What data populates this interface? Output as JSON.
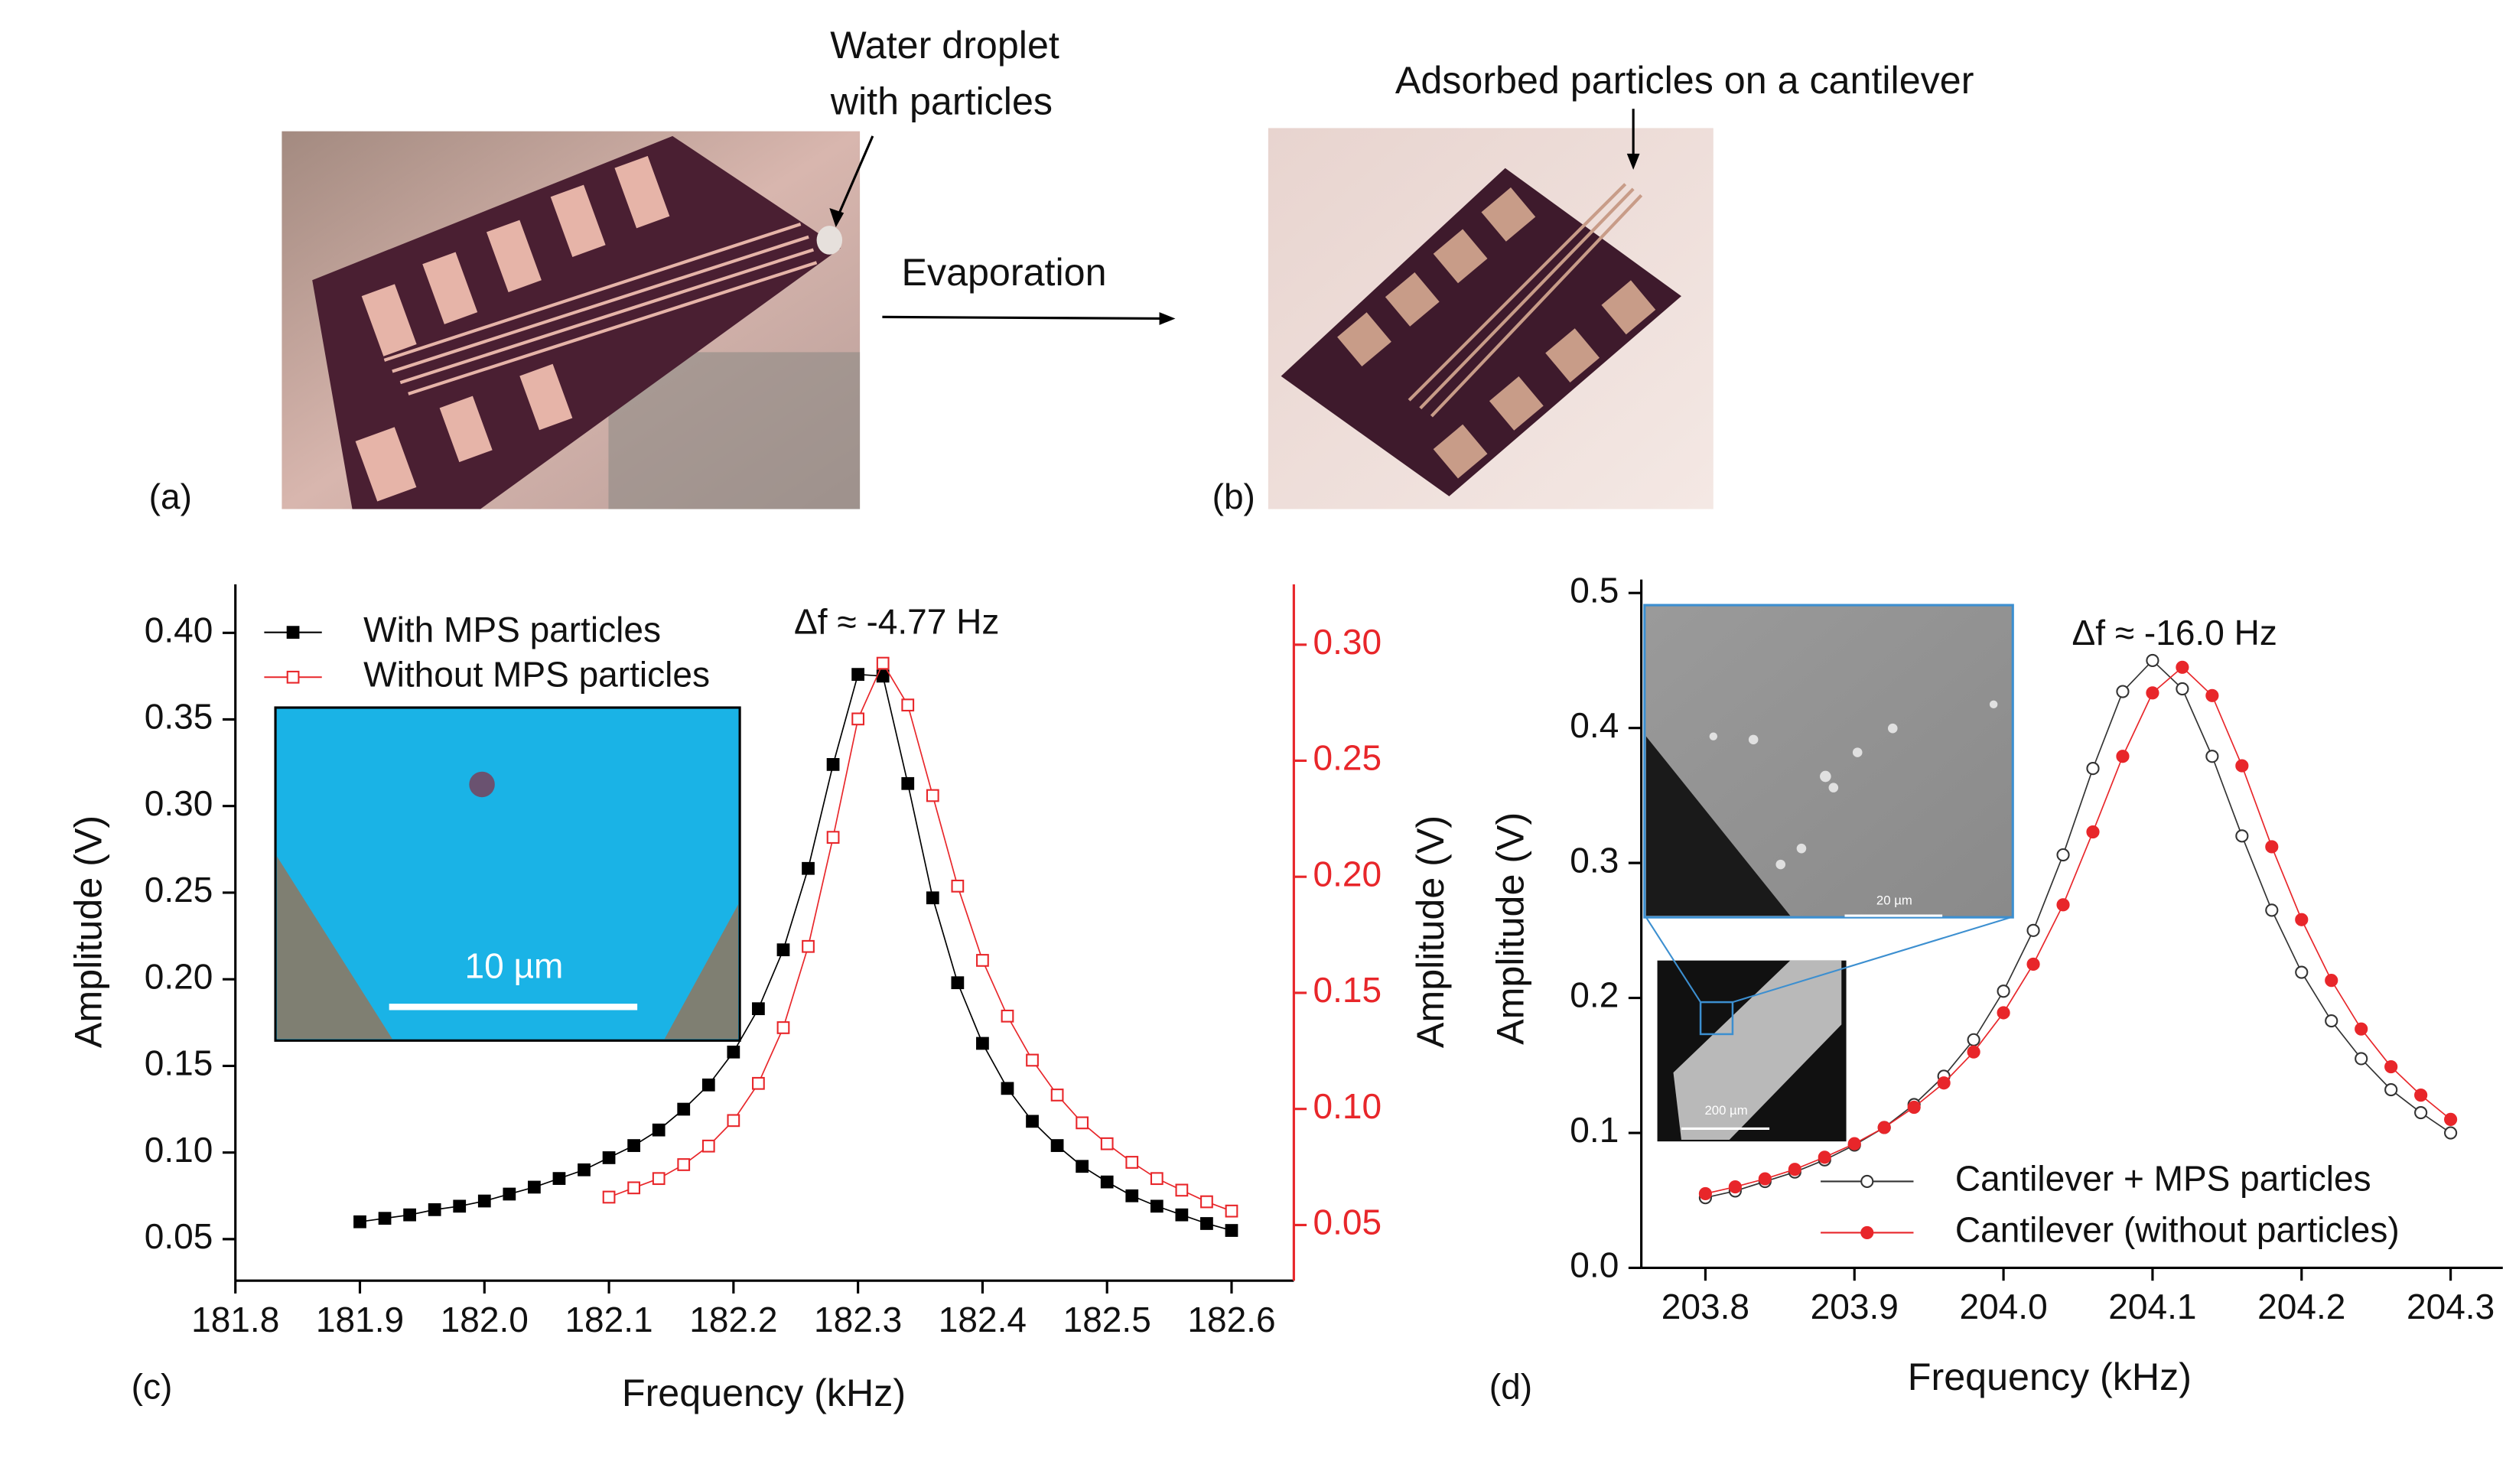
{
  "figure": {
    "photos": [
      {
        "label": "(a)",
        "callout": [
          "Water droplet",
          "with particles"
        ]
      },
      {
        "label": "(b)",
        "callout": [
          "Adsorbed particles on a cantilever"
        ]
      }
    ],
    "arrow_label": "Evaporation"
  },
  "chart_data": [
    {
      "type": "line",
      "panel_label": "(c)",
      "annotation": "Δf ≈ -4.77 Hz",
      "xlabel": "Frequency (kHz)",
      "ylabel": "Amplitude (V)",
      "y2label": "Amplitude (V)",
      "y2_color": "#e8262a",
      "legend": "upper left",
      "inset_labels": [
        "10 µm"
      ],
      "xlim": [
        181.8,
        182.65
      ],
      "xticks": [
        181.8,
        181.9,
        {
          "value": 182.0,
          "label": "182.0"
        },
        182.1,
        182.2,
        182.3,
        182.4,
        182.5,
        182.6
      ],
      "ylim": [
        0.026,
        0.428
      ],
      "yticks": [
        0.05,
        {
          "value": 0.1,
          "label": "0.10"
        },
        0.15,
        {
          "value": 0.2,
          "label": "0.20"
        },
        0.25,
        {
          "value": 0.3,
          "label": "0.30"
        },
        0.35,
        {
          "value": 0.4,
          "label": "0.40"
        }
      ],
      "y2lim": [
        0.026,
        0.326
      ],
      "y2ticks": [
        0.05,
        {
          "value": 0.1,
          "label": "0.10"
        },
        0.15,
        {
          "value": 0.2,
          "label": "0.20"
        },
        0.25,
        {
          "value": 0.3,
          "label": "0.30"
        }
      ],
      "series": [
        {
          "name": "With MPS particles",
          "color": "#000000",
          "marker": "square",
          "filled": true,
          "x": [
            181.9,
            181.92,
            181.94,
            181.96,
            181.98,
            182.0,
            182.02,
            182.04,
            182.06,
            182.08,
            182.1,
            182.12,
            182.14,
            182.16,
            182.18,
            182.2,
            182.22,
            182.24,
            182.26,
            182.28,
            182.3,
            182.32,
            182.34,
            182.36,
            182.38,
            182.4,
            182.42,
            182.44,
            182.46,
            182.48,
            182.5,
            182.52,
            182.54,
            182.56,
            182.58,
            182.6
          ],
          "values": [
            0.06,
            0.062,
            0.064,
            0.067,
            0.069,
            0.072,
            0.076,
            0.08,
            0.085,
            0.09,
            0.097,
            0.104,
            0.113,
            0.125,
            0.139,
            0.158,
            0.183,
            0.217,
            0.264,
            0.324,
            0.376,
            0.375,
            0.313,
            0.247,
            0.198,
            0.163,
            0.137,
            0.118,
            0.104,
            0.092,
            0.083,
            0.075,
            0.069,
            0.064,
            0.059,
            0.055
          ]
        },
        {
          "name": "Without MPS particles",
          "color": "#e8262a",
          "marker": "square",
          "filled": false,
          "axis": "y2",
          "x": [
            182.1,
            182.12,
            182.14,
            182.16,
            182.18,
            182.2,
            182.22,
            182.24,
            182.26,
            182.28,
            182.3,
            182.32,
            182.34,
            182.36,
            182.38,
            182.4,
            182.42,
            182.44,
            182.46,
            182.48,
            182.5,
            182.52,
            182.54,
            182.56,
            182.58,
            182.6
          ],
          "values": [
            0.062,
            0.066,
            0.07,
            0.076,
            0.084,
            0.095,
            0.111,
            0.135,
            0.17,
            0.217,
            0.268,
            0.292,
            0.274,
            0.235,
            0.196,
            0.164,
            0.14,
            0.121,
            0.106,
            0.094,
            0.085,
            0.077,
            0.07,
            0.065,
            0.06,
            0.056
          ]
        }
      ]
    },
    {
      "type": "line",
      "panel_label": "(d)",
      "annotation": "Δf ≈ -16.0 Hz",
      "xlabel": "Frequency (kHz)",
      "ylabel": "Amplitude (V)",
      "legend": "lower right",
      "inset_labels": [
        "20 µm",
        "200 µm"
      ],
      "xlim": [
        203.757,
        204.335
      ],
      "xticks": [
        203.8,
        203.9,
        {
          "value": 204.0,
          "label": "204.0"
        },
        204.1,
        204.2,
        204.3
      ],
      "ylim": [
        0,
        0.51
      ],
      "yticks": [
        {
          "value": 0,
          "label": "0.0"
        },
        0.1,
        0.2,
        0.3,
        0.4,
        0.5
      ],
      "series": [
        {
          "name": "Cantilever + MPS particles",
          "color": "#333333",
          "marker": "circle",
          "filled": false,
          "x": [
            203.8,
            203.82,
            203.84,
            203.86,
            203.88,
            203.9,
            203.92,
            203.94,
            203.96,
            203.98,
            204.0,
            204.02,
            204.04,
            204.06,
            204.08,
            204.1,
            204.12,
            204.14,
            204.16,
            204.18,
            204.2,
            204.22,
            204.24,
            204.26,
            204.28,
            204.3
          ],
          "values": [
            0.052,
            0.057,
            0.064,
            0.071,
            0.08,
            0.091,
            0.104,
            0.121,
            0.142,
            0.169,
            0.205,
            0.25,
            0.306,
            0.37,
            0.427,
            0.45,
            0.429,
            0.379,
            0.32,
            0.265,
            0.219,
            0.183,
            0.155,
            0.132,
            0.115,
            0.1
          ]
        },
        {
          "name": "Cantilever (without particles)",
          "color": "#e8262a",
          "marker": "circle",
          "filled": true,
          "x": [
            203.8,
            203.82,
            203.84,
            203.86,
            203.88,
            203.9,
            203.92,
            203.94,
            203.96,
            203.98,
            204.0,
            204.02,
            204.04,
            204.06,
            204.08,
            204.1,
            204.12,
            204.14,
            204.16,
            204.18,
            204.2,
            204.22,
            204.24,
            204.26,
            204.28,
            204.3
          ],
          "values": [
            0.055,
            0.06,
            0.066,
            0.073,
            0.082,
            0.092,
            0.104,
            0.119,
            0.137,
            0.16,
            0.189,
            0.225,
            0.269,
            0.323,
            0.379,
            0.426,
            0.445,
            0.424,
            0.372,
            0.312,
            0.258,
            0.213,
            0.177,
            0.149,
            0.128,
            0.11
          ]
        }
      ]
    }
  ]
}
